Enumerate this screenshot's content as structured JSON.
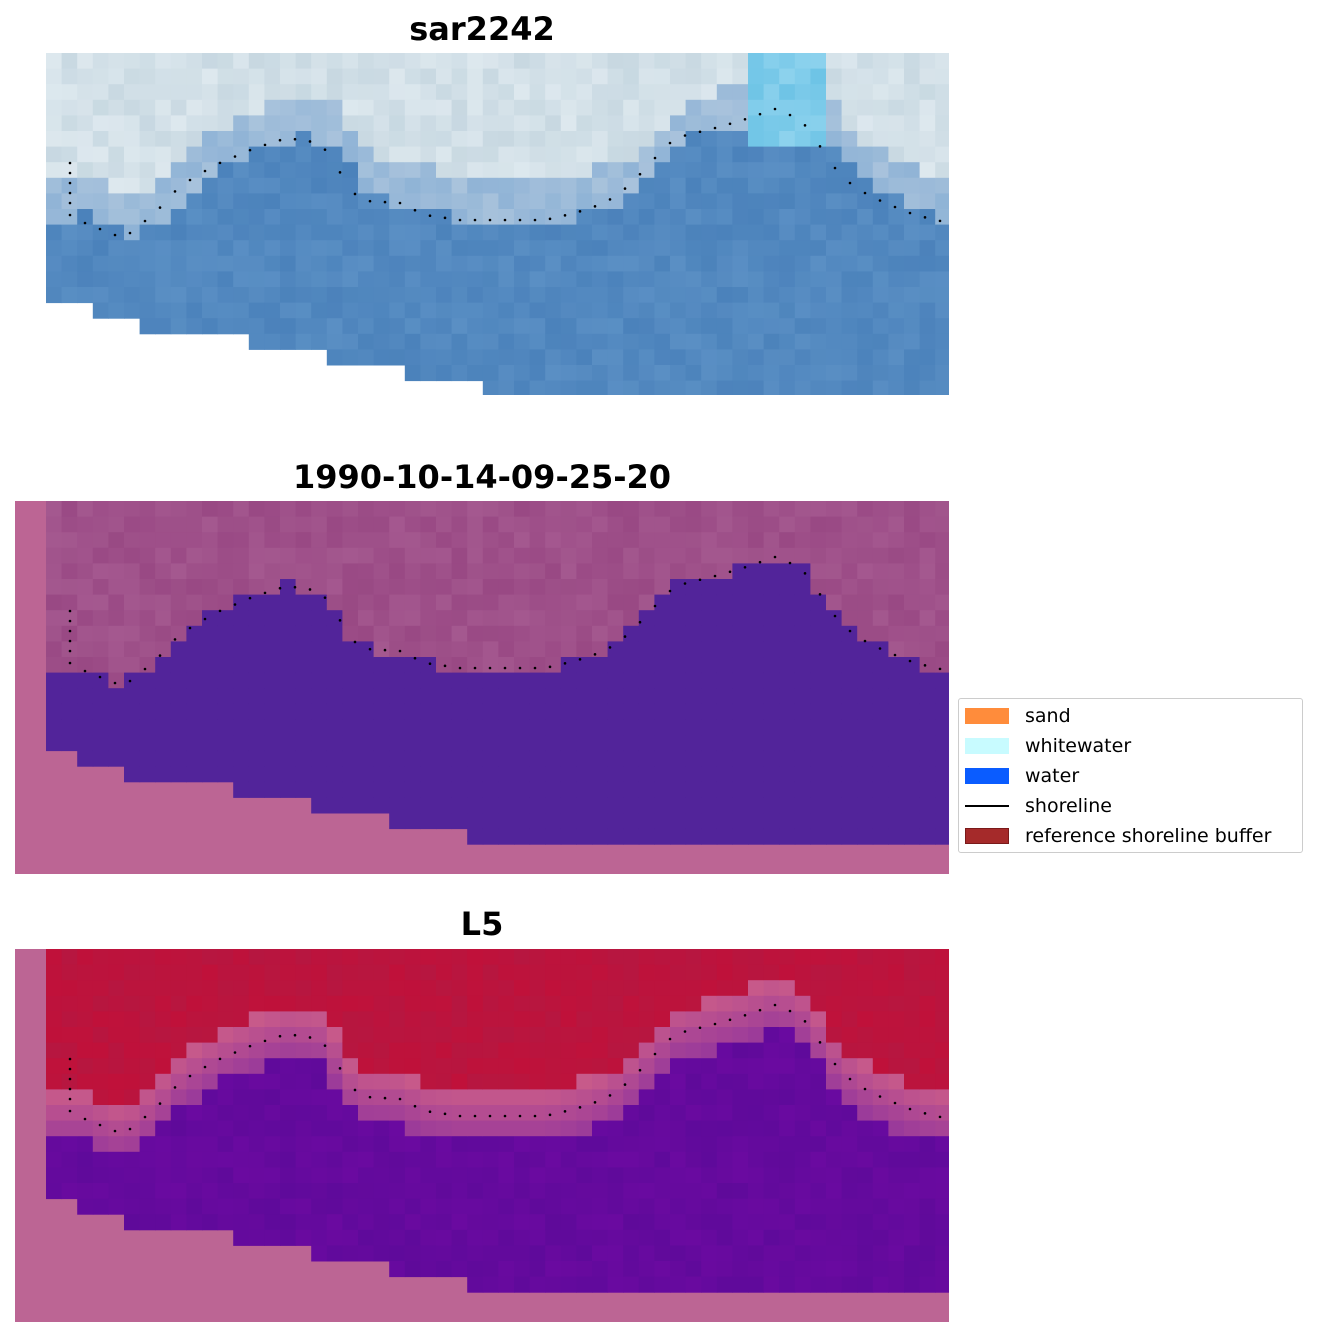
{
  "panels": [
    {
      "title": "sar2242",
      "kind": "image"
    },
    {
      "title": "1990-10-14-09-25-20",
      "kind": "classification"
    },
    {
      "title": "L5",
      "kind": "index"
    }
  ],
  "legend": {
    "items": [
      {
        "label": "sand",
        "color": "#ff8c3b",
        "type": "patch"
      },
      {
        "label": "whitewater",
        "color": "#c8fbff",
        "type": "patch"
      },
      {
        "label": "water",
        "color": "#0a5cff",
        "type": "patch"
      },
      {
        "label": "shoreline",
        "color": "#000000",
        "type": "line"
      },
      {
        "label": "reference shoreline buffer",
        "color": "#a52a2a",
        "type": "patch"
      }
    ]
  },
  "colors": {
    "mask": "#bc6594",
    "classified_water": "#52249a",
    "land_index": "#c0113a",
    "water_index": "#6a0aa0"
  }
}
